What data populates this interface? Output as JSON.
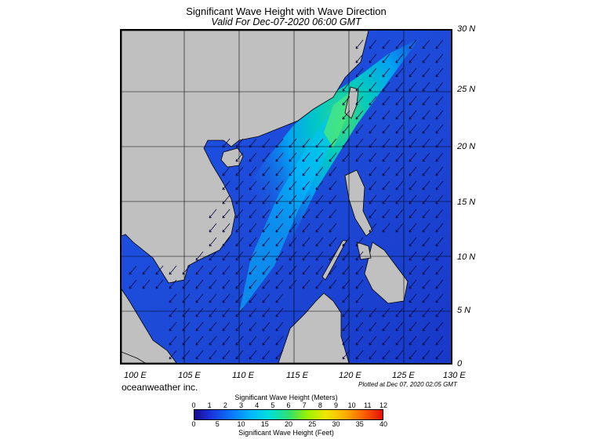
{
  "header": {
    "title": "Significant Wave Height with Wave Direction",
    "valid": "Valid For Dec-07-2020 06:00 GMT"
  },
  "axes": {
    "lat_labels": [
      "30 N",
      "25 N",
      "20 N",
      "15 N",
      "10 N",
      "5 N",
      "0"
    ],
    "lon_labels": [
      "100 E",
      "105 E",
      "110 E",
      "115 E",
      "120 E",
      "125 E",
      "130 E"
    ]
  },
  "footer": {
    "brand": "oceanweather inc.",
    "plotted": "Plotted at Dec 07, 2020 02:05 GMT"
  },
  "legend": {
    "meters_title": "Significant Wave Height (Meters)",
    "meters_ticks": [
      "0",
      "1",
      "2",
      "3",
      "4",
      "5",
      "6",
      "7",
      "8",
      "9",
      "10",
      "11",
      "12"
    ],
    "feet_title": "Significant Wave Height (Feet)",
    "feet_ticks": [
      "0",
      "5",
      "10",
      "15",
      "20",
      "25",
      "30",
      "35",
      "40"
    ]
  },
  "colors": {
    "land": "#c0c0c0",
    "low_wave": "#1e3fd6",
    "mid_wave": "#00a8ff",
    "high_wave": "#2adf6a",
    "arrow": "#0a0a40"
  }
}
